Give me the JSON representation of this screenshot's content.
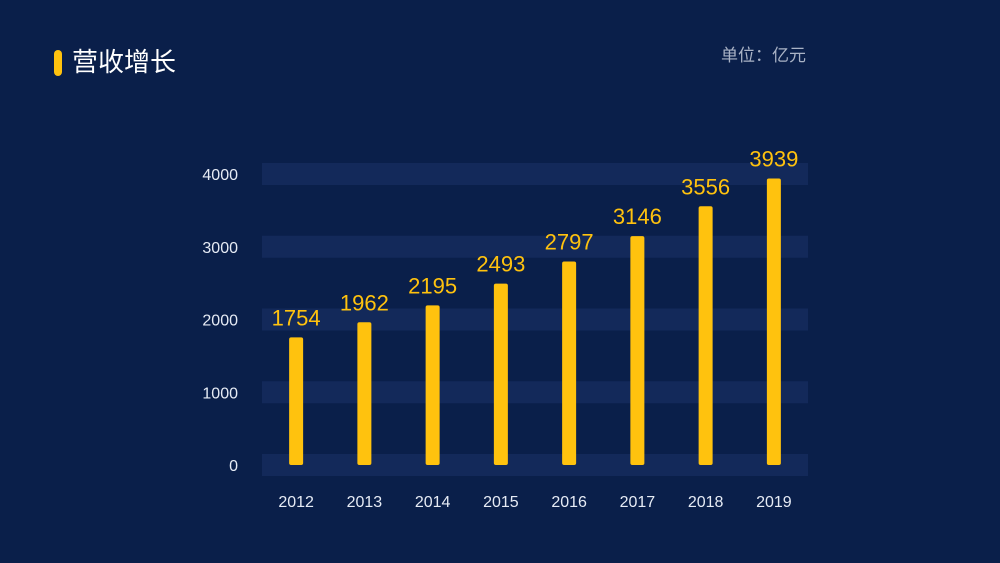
{
  "title": "营收增长",
  "unit_label": "单位：亿元",
  "colors": {
    "background": "#0a1f4a",
    "accent": "#ffc20e",
    "bar": "#ffc20e",
    "band": "#13295a",
    "tick_text": "#e6ebf5"
  },
  "chart_data": {
    "type": "bar",
    "title": "营收增长",
    "xlabel": "",
    "ylabel": "",
    "unit": "亿元",
    "categories": [
      "2012",
      "2013",
      "2014",
      "2015",
      "2016",
      "2017",
      "2018",
      "2019"
    ],
    "values": [
      1754,
      1962,
      2195,
      2493,
      2797,
      3146,
      3556,
      3939
    ],
    "data_labels": [
      "1754",
      "1962",
      "2195",
      "2493",
      "2797",
      "3146",
      "3556",
      "3939"
    ],
    "y_ticks": [
      "0",
      "1000",
      "2000",
      "3000",
      "4000"
    ],
    "ylim": [
      0,
      4000
    ],
    "grid": true,
    "legend": "none"
  }
}
